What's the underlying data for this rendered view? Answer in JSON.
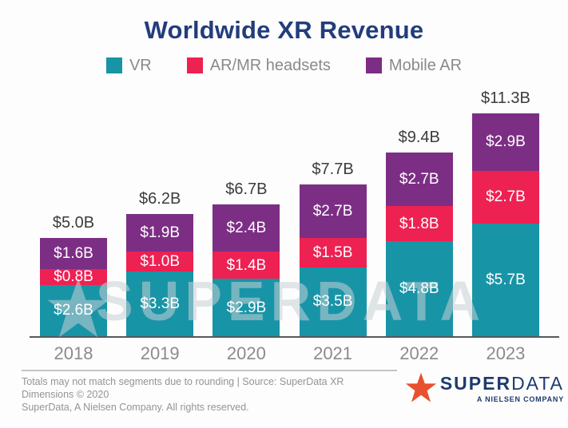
{
  "title": "Worldwide XR Revenue",
  "chart_data": {
    "type": "bar",
    "stacked": true,
    "title": "Worldwide XR Revenue",
    "categories": [
      "2018",
      "2019",
      "2020",
      "2021",
      "2022",
      "2023"
    ],
    "series": [
      {
        "name": "VR",
        "color": "#1894A7",
        "values": [
          2.6,
          3.3,
          2.9,
          3.5,
          4.8,
          5.7
        ]
      },
      {
        "name": "AR/MR headsets",
        "color": "#ED2152",
        "values": [
          0.8,
          1.0,
          1.4,
          1.5,
          1.8,
          2.7
        ]
      },
      {
        "name": "Mobile AR",
        "color": "#7C2E84",
        "values": [
          1.6,
          1.9,
          2.4,
          2.7,
          2.7,
          2.9
        ]
      }
    ],
    "totals": [
      5.0,
      6.2,
      6.7,
      7.7,
      9.4,
      11.3
    ],
    "value_format": "$#.#B",
    "xlabel": "",
    "ylabel": "",
    "ylim": [
      0,
      12
    ],
    "grid": false,
    "legend_position": "top",
    "bar_label_color": "#FFFFFF",
    "total_label_color": "#3C3C3C"
  },
  "watermark": {
    "text": "SUPERDATA"
  },
  "footer": {
    "note_line1": "Totals may not match segments due to rounding | Source: SuperData XR Dimensions © 2020",
    "note_line2": "SuperData, A Nielsen Company. All rights reserved.",
    "logo": {
      "word_bold": "SUPER",
      "word_light": "DATA",
      "tagline": "A NIELSEN COMPANY",
      "star_color": "#E9502F",
      "text_color": "#1E3A6E"
    }
  }
}
